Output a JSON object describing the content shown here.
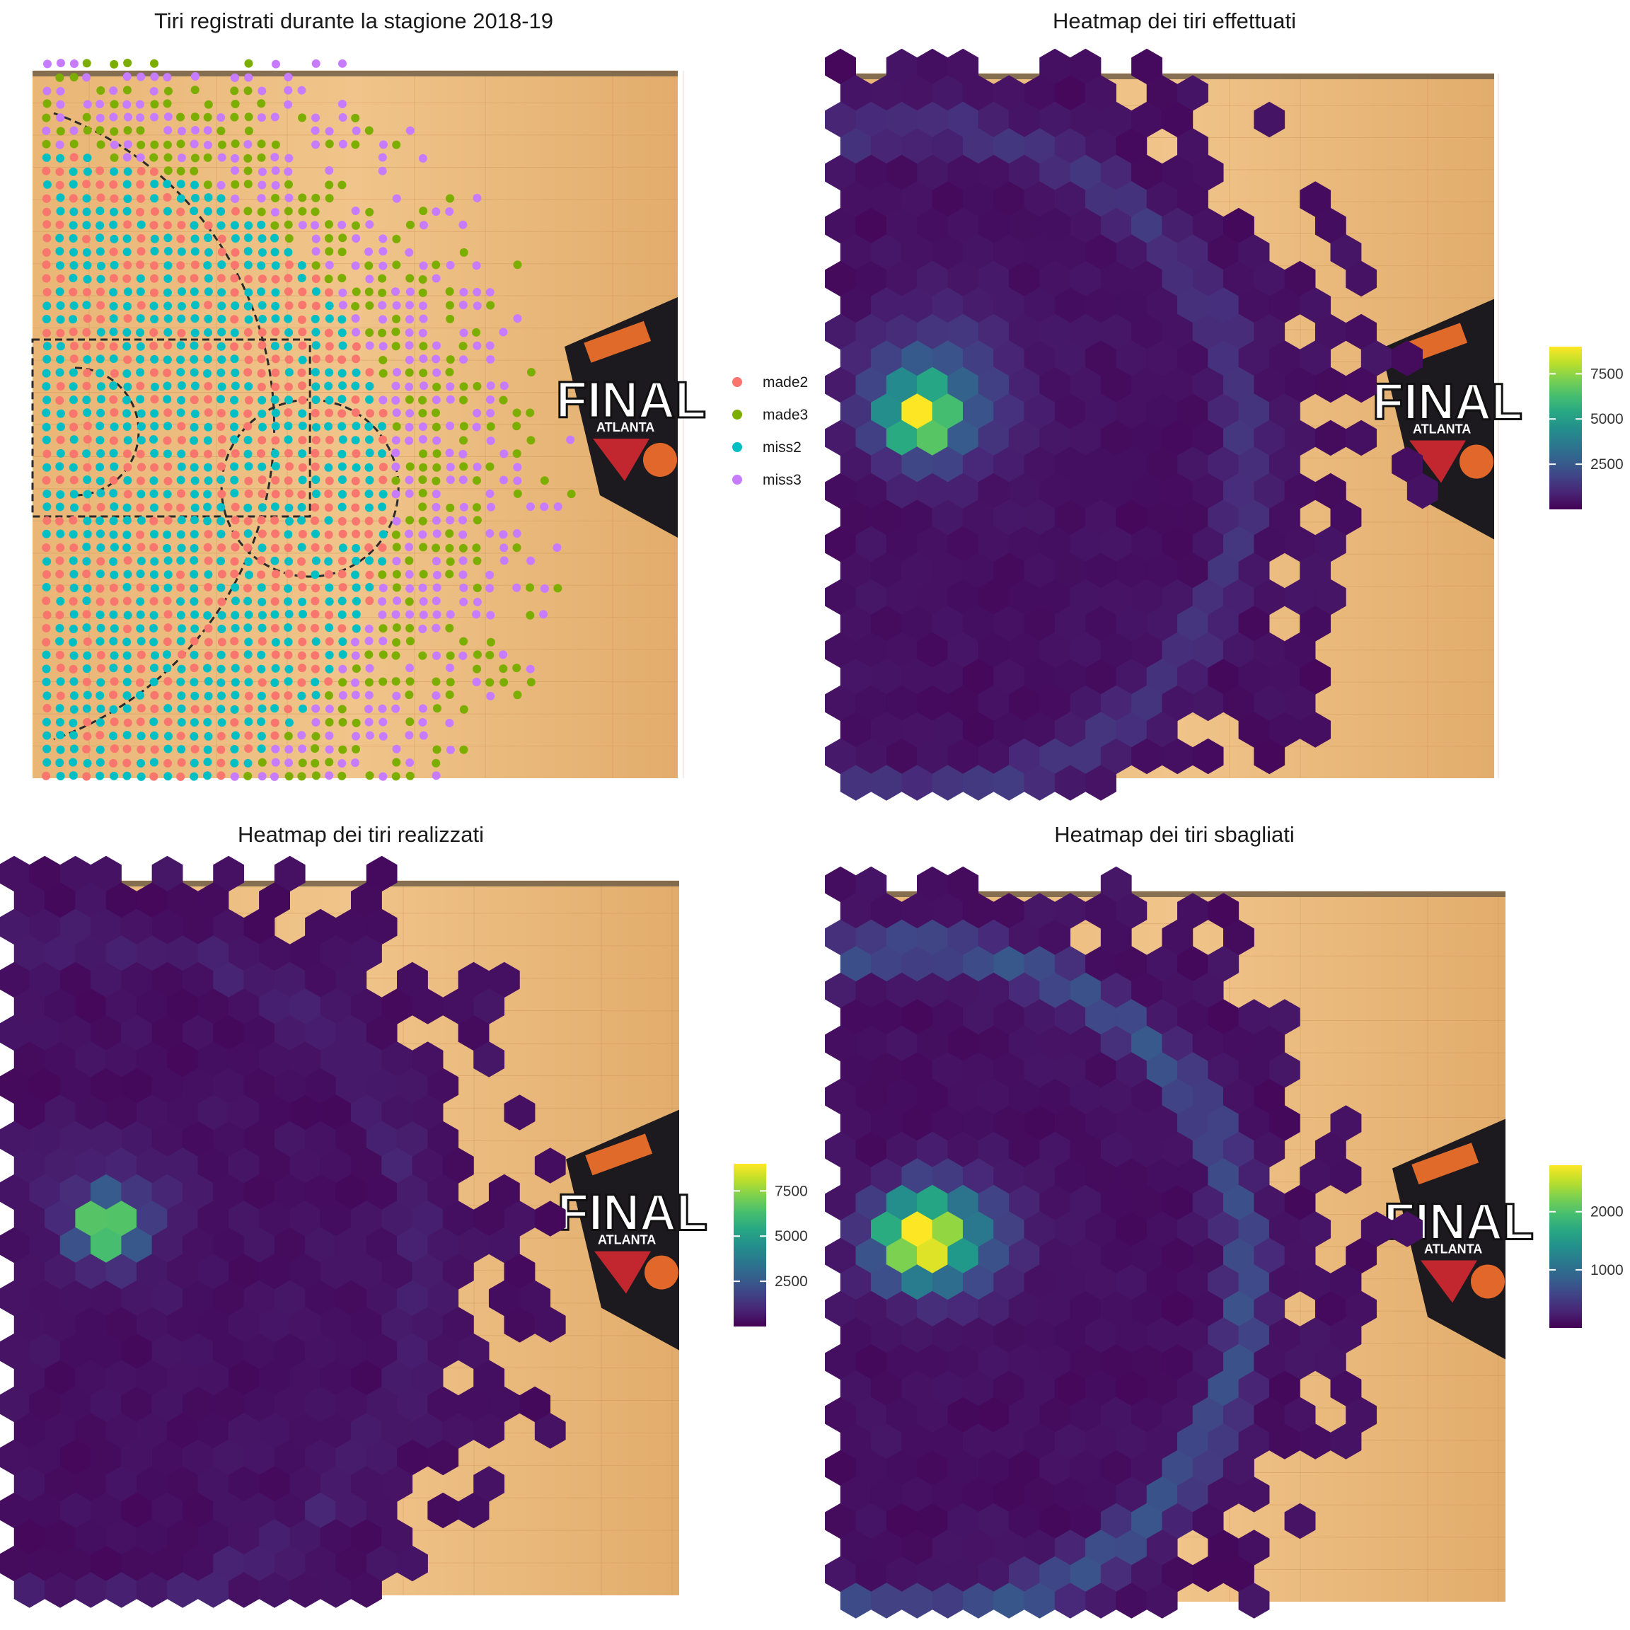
{
  "charts": [
    {
      "id": "scatter",
      "title": "Tiri registrati durante la stagione 2018-19",
      "legend": {
        "items": [
          {
            "label": "made2",
            "color": "#F8766D"
          },
          {
            "label": "made3",
            "color": "#7CAE00"
          },
          {
            "label": "miss2",
            "color": "#00BFC4"
          },
          {
            "label": "miss3",
            "color": "#C77CFF"
          }
        ]
      }
    },
    {
      "id": "heat-effettuati",
      "title": "Heatmap dei tiri effettuati",
      "colorbar": {
        "min": 1,
        "max": 9000,
        "ticks": [
          "2500",
          "5000",
          "7500"
        ],
        "tick_values": [
          2500,
          5000,
          7500
        ]
      }
    },
    {
      "id": "heat-realizzati",
      "title": "Heatmap dei tiri realizzati",
      "colorbar": {
        "min": 1,
        "max": 9000,
        "ticks": [
          "2500",
          "5000",
          "7500"
        ],
        "tick_values": [
          2500,
          5000,
          7500
        ]
      }
    },
    {
      "id": "heat-sbagliati",
      "title": "Heatmap dei tiri sbagliati",
      "colorbar": {
        "min": 1,
        "max": 2800,
        "ticks": [
          "1000",
          "2000"
        ],
        "tick_values": [
          1000,
          2000
        ]
      }
    }
  ],
  "court_logo_text": "FINAL",
  "court_logo_subtext": "ATLANTA",
  "chart_data": [
    {
      "type": "scatter",
      "title": "Tiri registrati durante la stagione 2018-19",
      "series": [
        {
          "name": "made2",
          "color": "#F8766D"
        },
        {
          "name": "made3",
          "color": "#7CAE00"
        },
        {
          "name": "miss2",
          "color": "#00BFC4"
        },
        {
          "name": "miss3",
          "color": "#C77CFF"
        }
      ],
      "legend_position": "right",
      "grid": false
    },
    {
      "type": "heatmap",
      "title": "Heatmap dei tiri effettuati",
      "fill_scale": "viridis",
      "fill_range": [
        1,
        9000
      ],
      "colorbar_ticks": [
        2500,
        5000,
        7500
      ],
      "peak_value": 9000
    },
    {
      "type": "heatmap",
      "title": "Heatmap dei tiri realizzati",
      "fill_scale": "viridis",
      "fill_range": [
        1,
        9000
      ],
      "colorbar_ticks": [
        2500,
        5000,
        7500
      ],
      "peak_value": 9000
    },
    {
      "type": "heatmap",
      "title": "Heatmap dei tiri sbagliati",
      "fill_scale": "viridis",
      "fill_range": [
        1,
        2800
      ],
      "colorbar_ticks": [
        1000,
        2000
      ],
      "peak_value": 2800
    }
  ]
}
